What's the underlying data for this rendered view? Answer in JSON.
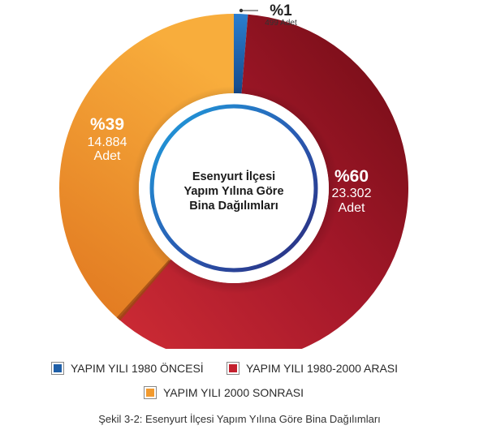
{
  "chart_data": {
    "type": "pie",
    "variant": "donut",
    "center_title": [
      "Esenyurt İlçesi",
      "Yapım Yılına Göre",
      "Bina Dağılımları"
    ],
    "slices": [
      {
        "label": "YAPIM YILI 1980 ÖNCESİ",
        "percent_label": "%1",
        "count_label": "499",
        "unit": "Adet",
        "value": 499,
        "color": "#1f5fa8"
      },
      {
        "label": "YAPIM YILI 1980-2000 ARASI",
        "percent_label": "%60",
        "count_label": "23.302",
        "unit": "Adet",
        "value": 23302,
        "color": "#a5182a"
      },
      {
        "label": "YAPIM YILI 2000 SONRASI",
        "percent_label": "%39",
        "count_label": "14.884",
        "unit": "Adet",
        "value": 14884,
        "color": "#f29a2e"
      }
    ],
    "legend_position": "bottom"
  },
  "caption": "Şekil 3-2: Esenyurt İlçesi Yapım Yılına Göre Bina Dağılımları"
}
